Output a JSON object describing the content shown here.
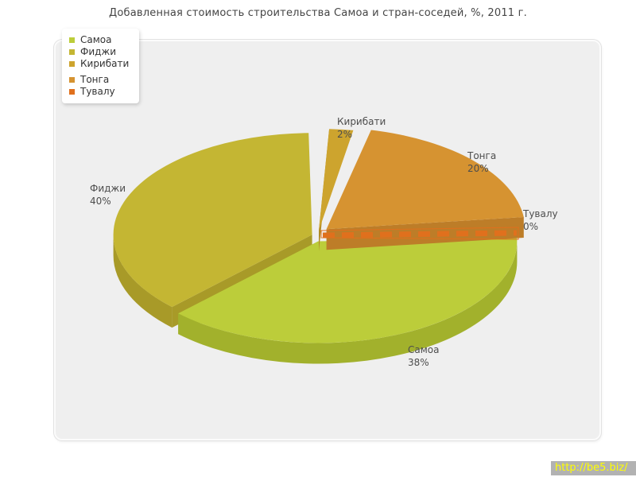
{
  "title": "Добавленная стоимость строительства Самоа и стран-соседей, %, 2011 г.",
  "watermark": "http://be5.biz/",
  "chart_data": {
    "type": "pie",
    "title": "Добавленная стоимость строительства Самоа и стран-соседей, %, 2011 г.",
    "unit": "%",
    "style": "3d-exploded",
    "legend_position": "top-left",
    "background_panel_color": "#efefef",
    "slices": [
      {
        "label": "Самоа",
        "value": 38,
        "display": "38%",
        "color": "#bccd3a",
        "side_color": "#a2b12c"
      },
      {
        "label": "Фиджи",
        "value": 40,
        "display": "40%",
        "color": "#c4b633",
        "side_color": "#a89a28"
      },
      {
        "label": "Кирибати",
        "value": 2,
        "display": "2%",
        "color": "#cda42e",
        "side_color": "#b08a26"
      },
      {
        "label": "Тонга",
        "value": 20,
        "display": "20%",
        "color": "#d69331",
        "side_color": "#bd7d28"
      },
      {
        "label": "Тувалу",
        "value": 0,
        "display": "0%",
        "color": "#e0701d",
        "side_color": "#c4611a"
      }
    ],
    "legend_order": [
      "Самоа",
      "Фиджи",
      "Кирибати",
      "Тонга",
      "Тувалу"
    ]
  }
}
